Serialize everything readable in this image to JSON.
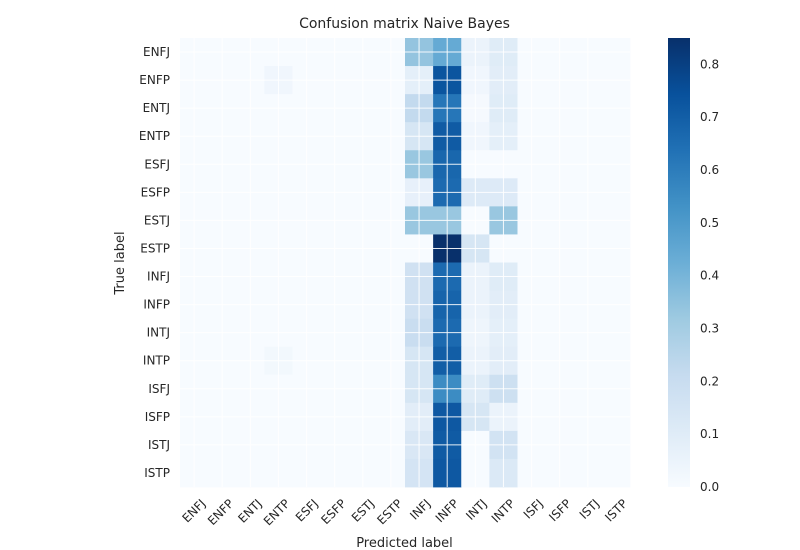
{
  "chart_data": {
    "type": "heatmap",
    "title": "Confusion matrix Naive Bayes",
    "xlabel": "Predicted label",
    "ylabel": "True label",
    "x_categories": [
      "ENFJ",
      "ENFP",
      "ENTJ",
      "ENTP",
      "ESFJ",
      "ESFP",
      "ESTJ",
      "ESTP",
      "INFJ",
      "INFP",
      "INTJ",
      "INTP",
      "ISFJ",
      "ISFP",
      "ISTJ",
      "ISTP"
    ],
    "y_categories": [
      "ENFJ",
      "ENFP",
      "ENTJ",
      "ENTP",
      "ESFJ",
      "ESFP",
      "ESTJ",
      "ESTP",
      "INFJ",
      "INFP",
      "INTJ",
      "INTP",
      "ISFJ",
      "ISFP",
      "ISTJ",
      "ISTP"
    ],
    "colormap": "Blues",
    "color_range": [
      0.0,
      0.85
    ],
    "colorbar_ticks": [
      "0.0",
      "0.1",
      "0.2",
      "0.3",
      "0.4",
      "0.5",
      "0.6",
      "0.7",
      "0.8"
    ],
    "grid": true,
    "values": [
      [
        0,
        0,
        0,
        0,
        0,
        0,
        0,
        0,
        0.34,
        0.44,
        0.05,
        0.1,
        0,
        0,
        0,
        0
      ],
      [
        0,
        0,
        0,
        0.03,
        0,
        0,
        0,
        0,
        0.08,
        0.73,
        0.03,
        0.09,
        0,
        0,
        0,
        0
      ],
      [
        0,
        0,
        0,
        0,
        0,
        0,
        0,
        0,
        0.22,
        0.62,
        0.01,
        0.1,
        0,
        0,
        0,
        0
      ],
      [
        0,
        0,
        0,
        0,
        0,
        0,
        0,
        0,
        0.14,
        0.71,
        0.03,
        0.08,
        0,
        0,
        0,
        0
      ],
      [
        0,
        0,
        0,
        0,
        0,
        0,
        0,
        0,
        0.33,
        0.67,
        0,
        0,
        0,
        0,
        0,
        0
      ],
      [
        0,
        0,
        0,
        0,
        0,
        0,
        0,
        0,
        0.07,
        0.66,
        0.11,
        0.11,
        0,
        0,
        0,
        0
      ],
      [
        0,
        0,
        0,
        0,
        0,
        0,
        0,
        0,
        0.33,
        0.33,
        0,
        0.33,
        0,
        0,
        0,
        0
      ],
      [
        0,
        0,
        0,
        0,
        0,
        0,
        0,
        0,
        0,
        0.86,
        0.14,
        0,
        0,
        0,
        0,
        0
      ],
      [
        0,
        0,
        0,
        0,
        0,
        0,
        0,
        0,
        0.17,
        0.66,
        0.05,
        0.1,
        0,
        0,
        0,
        0
      ],
      [
        0,
        0,
        0,
        0,
        0,
        0,
        0,
        0,
        0.17,
        0.68,
        0.05,
        0.09,
        0,
        0,
        0,
        0
      ],
      [
        0,
        0,
        0,
        0,
        0,
        0,
        0,
        0,
        0.2,
        0.66,
        0.04,
        0.08,
        0,
        0,
        0,
        0
      ],
      [
        0,
        0,
        0,
        0.02,
        0,
        0,
        0,
        0,
        0.14,
        0.7,
        0.05,
        0.09,
        0,
        0,
        0,
        0
      ],
      [
        0,
        0,
        0,
        0,
        0,
        0,
        0,
        0,
        0.14,
        0.55,
        0.1,
        0.18,
        0,
        0,
        0,
        0
      ],
      [
        0,
        0,
        0,
        0,
        0,
        0,
        0,
        0,
        0.09,
        0.72,
        0.14,
        0.05,
        0,
        0,
        0,
        0
      ],
      [
        0,
        0,
        0,
        0,
        0,
        0,
        0,
        0,
        0.13,
        0.71,
        0,
        0.16,
        0,
        0,
        0,
        0
      ],
      [
        0,
        0,
        0,
        0,
        0,
        0,
        0,
        0,
        0.15,
        0.72,
        0,
        0.12,
        0,
        0,
        0,
        0
      ]
    ]
  }
}
